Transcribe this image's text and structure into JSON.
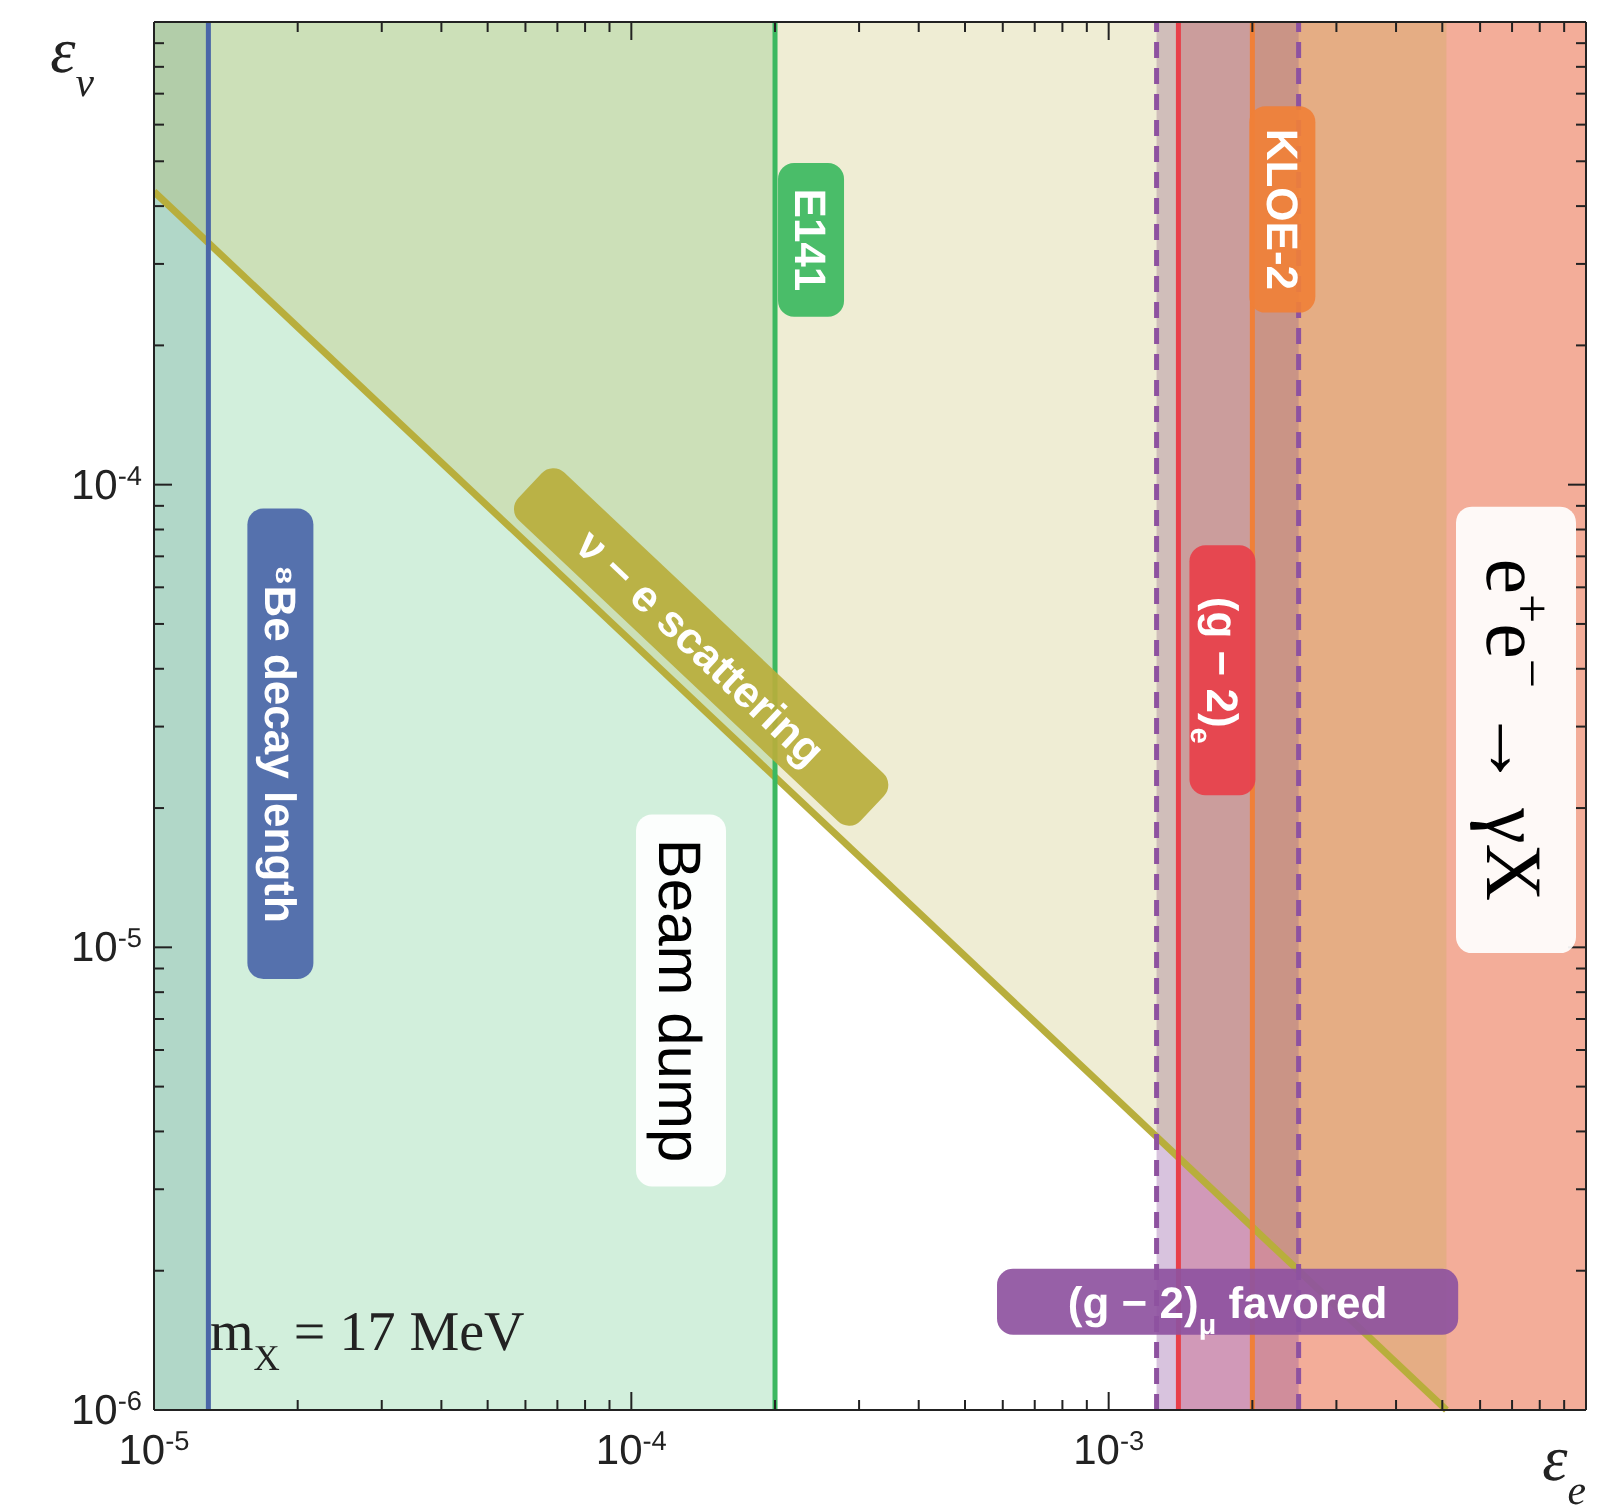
{
  "chart_data": {
    "type": "line",
    "xlabel": "ε$_{e}$",
    "ylabel": "ε$_{ν}$",
    "log": "xy",
    "xlim": [
      1e-05,
      0.01
    ],
    "ylim": [
      1e-06,
      0.001
    ],
    "xticks": [
      {
        "value": 1e-05,
        "label": "10$^{-5}$"
      },
      {
        "value": 2e-05,
        "label": null
      },
      {
        "value": 3e-05,
        "label": null
      },
      {
        "value": 4e-05,
        "label": null
      },
      {
        "value": 5e-05,
        "label": null
      },
      {
        "value": 6e-05,
        "label": null
      },
      {
        "value": 7e-05,
        "label": null
      },
      {
        "value": 8e-05,
        "label": null
      },
      {
        "value": 9e-05,
        "label": null
      },
      {
        "value": 0.0001,
        "label": "10$^{-4}$"
      },
      {
        "value": 0.0002,
        "label": null
      },
      {
        "value": 0.0003,
        "label": null
      },
      {
        "value": 0.0004,
        "label": null
      },
      {
        "value": 0.0005,
        "label": null
      },
      {
        "value": 0.0006,
        "label": null
      },
      {
        "value": 0.0007,
        "label": null
      },
      {
        "value": 0.0008,
        "label": null
      },
      {
        "value": 0.0009,
        "label": null
      },
      {
        "value": 0.001,
        "label": "10$^{-3}$"
      },
      {
        "value": 0.002,
        "label": null
      },
      {
        "value": 0.003,
        "label": null
      },
      {
        "value": 0.004,
        "label": null
      },
      {
        "value": 0.005,
        "label": null
      },
      {
        "value": 0.006,
        "label": null
      },
      {
        "value": 0.007,
        "label": null
      },
      {
        "value": 0.008,
        "label": null
      },
      {
        "value": 0.009,
        "label": null
      },
      {
        "value": 0.01,
        "label": null
      }
    ],
    "yticks": [
      {
        "value": 1e-06,
        "label": "10$^{-6}$"
      },
      {
        "value": 2e-06,
        "label": null
      },
      {
        "value": 3e-06,
        "label": null
      },
      {
        "value": 4e-06,
        "label": null
      },
      {
        "value": 5e-06,
        "label": null
      },
      {
        "value": 6e-06,
        "label": null
      },
      {
        "value": 7e-06,
        "label": null
      },
      {
        "value": 8e-06,
        "label": null
      },
      {
        "value": 9e-06,
        "label": null
      },
      {
        "value": 1e-05,
        "label": "10$^{-5}$"
      },
      {
        "value": 2e-05,
        "label": null
      },
      {
        "value": 3e-05,
        "label": null
      },
      {
        "value": 4e-05,
        "label": null
      },
      {
        "value": 5e-05,
        "label": null
      },
      {
        "value": 6e-05,
        "label": null
      },
      {
        "value": 7e-05,
        "label": null
      },
      {
        "value": 8e-05,
        "label": null
      },
      {
        "value": 9e-05,
        "label": null
      },
      {
        "value": 0.0001,
        "label": "10$^{-4}$"
      },
      {
        "value": 0.0002,
        "label": null
      },
      {
        "value": 0.0003,
        "label": null
      },
      {
        "value": 0.0004,
        "label": null
      },
      {
        "value": 0.0005,
        "label": null
      },
      {
        "value": 0.0006,
        "label": null
      },
      {
        "value": 0.0007,
        "label": null
      },
      {
        "value": 0.0008,
        "label": null
      },
      {
        "value": 0.0009,
        "label": null
      },
      {
        "value": 0.001,
        "label": null
      }
    ],
    "series": [
      {
        "name": "ν − e scattering",
        "color": "#b8ae3c",
        "x": [
          1e-05,
          0.0051
        ],
        "values": [
          0.00043,
          1e-06
        ],
        "lower": [
          0.00043,
          1e-06
        ],
        "upper": [
          0.001,
          0.001
        ]
      }
    ],
    "bands": [
      {
        "axis": "x",
        "from": 1e-05,
        "to": 1.3e-05,
        "color": "#6e98a8"
      },
      {
        "axis": "x",
        "from": 1e-05,
        "to": 0.0002,
        "color": "#7fd09a",
        "label": "Beam dump"
      },
      {
        "axis": "x",
        "from": 0.0014,
        "to": 0.01,
        "color": "#e04858"
      },
      {
        "axis": "x",
        "from": 0.002,
        "to": 0.01,
        "color": "#f08c48",
        "label": "e$^{+}$e$^{−}$ → γX"
      },
      {
        "axis": "x",
        "from": 0.00126,
        "to": 0.0025,
        "color": "#8e52a0",
        "label": "(g − 2)$_{μ}$ favored"
      }
    ],
    "ref_lines": [
      {
        "axis": "x",
        "value": 1.3e-05,
        "label": "⁸Be decay length",
        "color": "#4a66a8"
      },
      {
        "axis": "x",
        "value": 0.0002,
        "label": "E141",
        "color": "#3cb860"
      },
      {
        "axis": "x",
        "value": 0.0014,
        "label": "(g − 2)$_{e}$",
        "color": "#e8404a"
      },
      {
        "axis": "x",
        "value": 0.002,
        "label": "KLOE-2",
        "color": "#f08038"
      },
      {
        "axis": "x",
        "value": 0.00126,
        "color": "#8e52a0",
        "line_style": "dashed"
      },
      {
        "axis": "x",
        "value": 0.0025,
        "color": "#8e52a0",
        "line_style": "dashed"
      }
    ],
    "annotations": [
      "m$_{X}$ = 17 MeV"
    ],
    "line_style": "solid"
  }
}
